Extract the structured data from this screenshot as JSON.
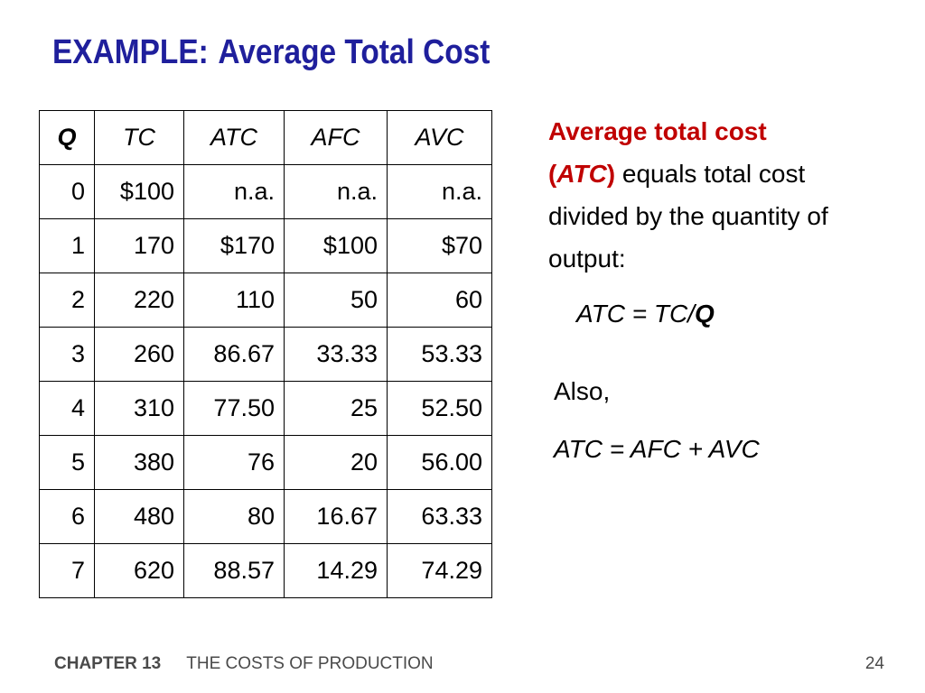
{
  "slide": {
    "title_prefix": "EXAMPLE:",
    "title_main": "Average Total Cost",
    "page_number": "24"
  },
  "table": {
    "headers": [
      "Q",
      "TC",
      "ATC",
      "AFC",
      "AVC"
    ],
    "rows": [
      [
        "0",
        "$100",
        "n.a.",
        "n.a.",
        "n.a."
      ],
      [
        "1",
        "170",
        "$170",
        "$100",
        "$70"
      ],
      [
        "2",
        "220",
        "110",
        "50",
        "60"
      ],
      [
        "3",
        "260",
        "86.67",
        "33.33",
        "53.33"
      ],
      [
        "4",
        "310",
        "77.50",
        "25",
        "52.50"
      ],
      [
        "5",
        "380",
        "76",
        "20",
        "56.00"
      ],
      [
        "6",
        "480",
        "80",
        "16.67",
        "63.33"
      ],
      [
        "7",
        "620",
        "88.57",
        "14.29",
        "74.29"
      ]
    ]
  },
  "explanation": {
    "term": "Average total cost",
    "open_paren": "(",
    "abbr": "ATC",
    "close_paren": ")",
    "text": " equals total cost divided by the quantity of output:"
  },
  "formula1": {
    "lhs": "ATC",
    "eq": " = ",
    "num": "TC",
    "slash": "/",
    "den": "Q"
  },
  "also": "Also,",
  "formula2": "ATC = AFC + AVC",
  "footer": {
    "chapter": "CHAPTER 13",
    "subtitle": "THE COSTS OF PRODUCTION"
  }
}
